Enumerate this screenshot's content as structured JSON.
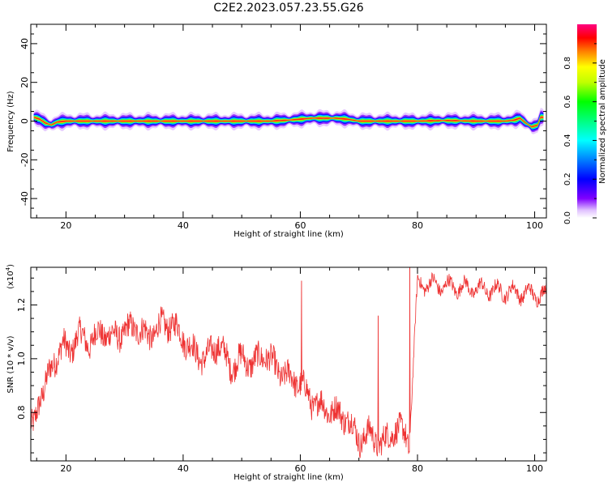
{
  "title": "C2E2.2023.057.23.55.G26",
  "chart_data": [
    {
      "type": "heatmap",
      "xlabel": "Height of straight line (km)",
      "ylabel": "Frequency (Hz)",
      "xlim": [
        14,
        102
      ],
      "ylim": [
        -50,
        50
      ],
      "x_ticks": [
        "20",
        "40",
        "60",
        "80",
        "100"
      ],
      "y_ticks": [
        "-40",
        "-20",
        "0",
        "20",
        "40"
      ],
      "colorbar": {
        "label": "Normalized spectral amplitude",
        "range": [
          0,
          1
        ],
        "ticks": [
          "0.0",
          "0.2",
          "0.4",
          "0.6",
          "0.8"
        ]
      },
      "ridge": {
        "x": [
          14.5,
          15.5,
          16.5,
          17.5,
          18.5,
          20,
          25,
          30,
          40,
          50,
          55,
          58,
          60,
          62,
          64,
          66,
          68,
          70,
          75,
          80,
          85,
          90,
          95,
          96.5,
          97.5,
          98.5,
          99.5,
          100.5,
          101
        ],
        "freq": [
          2,
          1,
          -1,
          -2,
          -0.5,
          0,
          0,
          0,
          0,
          0,
          0,
          0.5,
          1,
          1.5,
          1.5,
          1.5,
          1,
          0,
          0,
          0,
          0.3,
          0,
          0,
          0.5,
          1.5,
          -1,
          -3,
          -2,
          2
        ]
      }
    },
    {
      "type": "line",
      "xlabel": "Height of straight line (km)",
      "ylabel": "SNR (10 * v/v)",
      "y_scale_label": "(x10",
      "y_scale_exp": "4",
      "y_scale_close": ")",
      "xlim": [
        14,
        102
      ],
      "ylim": [
        0.62,
        1.34
      ],
      "x_ticks": [
        "20",
        "40",
        "60",
        "80",
        "100"
      ],
      "y_ticks": [
        "0.8",
        "1.0",
        "1.2"
      ],
      "series_color": "#ee3333",
      "x": [
        14.5,
        15.5,
        16.5,
        17.5,
        18.5,
        19.5,
        20.5,
        22,
        24,
        26,
        28,
        30,
        32,
        34,
        36,
        38,
        40,
        42,
        44,
        46,
        48,
        50,
        52,
        54,
        56,
        58,
        60,
        62,
        64,
        66,
        68,
        70,
        72,
        74,
        76,
        78,
        78.6,
        80,
        85,
        90,
        95,
        100,
        102
      ],
      "y": [
        0.74,
        0.86,
        0.9,
        0.96,
        1.02,
        1.05,
        1.02,
        1.09,
        1.06,
        1.1,
        1.08,
        1.1,
        1.12,
        1.08,
        1.12,
        1.13,
        1.08,
        1.02,
        1.0,
        1.06,
        0.97,
        1.0,
        0.98,
        1.02,
        0.96,
        0.93,
        0.91,
        0.84,
        0.82,
        0.8,
        0.78,
        0.7,
        0.72,
        0.68,
        0.74,
        0.72,
        0.68,
        1.28,
        1.27,
        1.26,
        1.25,
        1.24,
        1.24
      ],
      "spikes": [
        {
          "x": 60.2,
          "y": 1.29
        },
        {
          "x": 73.3,
          "y": 1.16
        },
        {
          "x": 78.7,
          "y": 1.34
        }
      ]
    }
  ]
}
